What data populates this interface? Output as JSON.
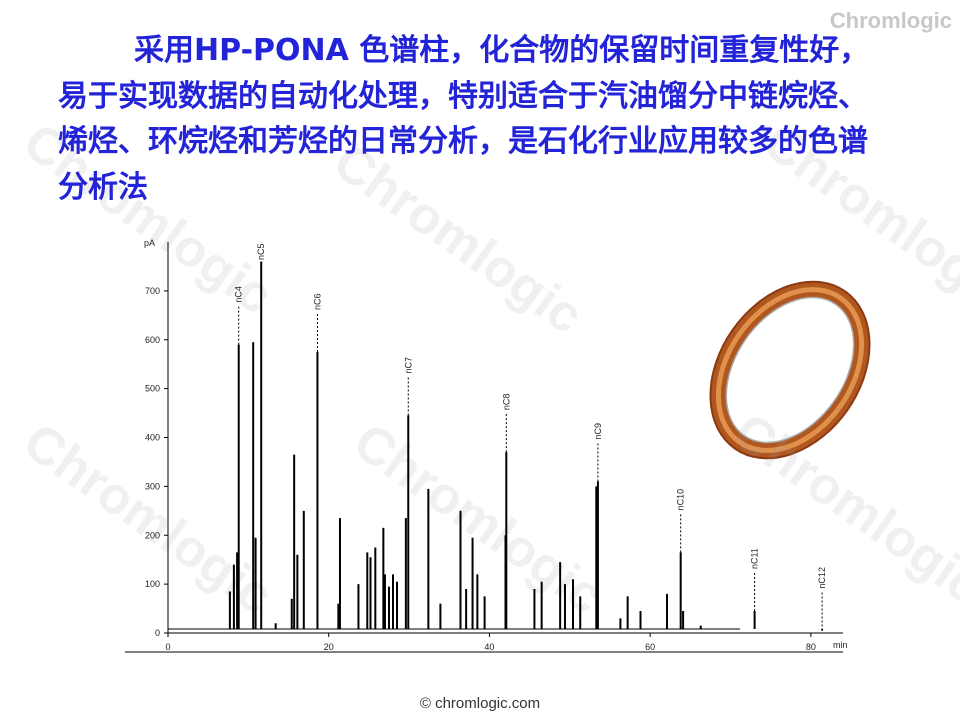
{
  "header": {
    "logo": "Chromlogic",
    "text": "采用HP-PONA 色谱柱，化合物的保留时间重复性好，易于实现数据的自动化处理，特别适合于汽油馏分中链烷烃、烯烃、环烷烃和芳烃的日常分析，是石化行业应用较多的色谱分析法"
  },
  "watermark": "Chromlogic",
  "footer": "© chromlogic.com",
  "chart_data": {
    "type": "chromatogram",
    "y_label": "pA",
    "x_label": "min",
    "xlim": [
      0,
      84
    ],
    "ylim": [
      0,
      800
    ],
    "xticks": [
      0,
      20,
      40,
      60,
      80
    ],
    "yticks": [
      0,
      100,
      200,
      300,
      400,
      500,
      600,
      700
    ],
    "color": "#000000",
    "x": [
      7.7,
      8.2,
      8.6,
      10.6,
      10.9,
      13.4,
      15.4,
      15.7,
      16.1,
      16.9,
      21.2,
      21.4,
      23.7,
      24.8,
      25.2,
      25.8,
      26.8,
      27.0,
      27.5,
      28.0,
      28.5,
      29.6,
      32.4,
      33.9,
      36.4,
      37.1,
      37.9,
      38.5,
      39.4,
      42.0,
      45.6,
      46.5,
      48.8,
      49.4,
      50.4,
      51.3,
      53.3,
      56.3,
      57.2,
      58.8,
      62.1,
      64.1,
      66.3
    ],
    "values": [
      85,
      140,
      165,
      595,
      195,
      20,
      70,
      365,
      160,
      250,
      60,
      235,
      100,
      165,
      155,
      175,
      215,
      120,
      95,
      120,
      105,
      235,
      295,
      60,
      250,
      90,
      195,
      120,
      75,
      200,
      90,
      105,
      145,
      100,
      110,
      75,
      300,
      30,
      75,
      45,
      80,
      45,
      15
    ],
    "peaks": {
      "names": [
        "nC4",
        "nC5",
        "nC6",
        "nC7",
        "nC8",
        "nC9",
        "nC10",
        "nC11",
        "nC12"
      ],
      "x": [
        8.8,
        11.6,
        18.6,
        29.9,
        42.1,
        53.5,
        63.8,
        73.0,
        81.4
      ],
      "values": [
        590,
        760,
        575,
        445,
        370,
        310,
        165,
        45,
        5
      ]
    }
  }
}
